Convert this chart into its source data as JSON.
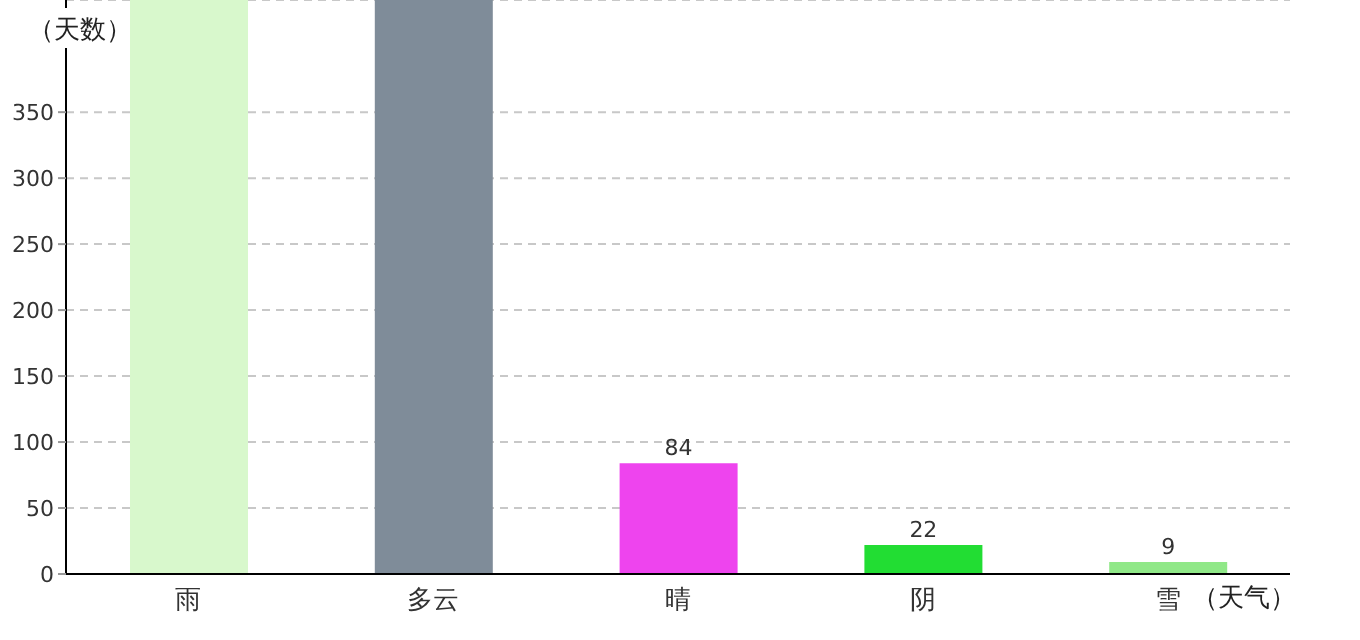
{
  "chart_data": {
    "type": "bar",
    "xlabel": "（天气）",
    "ylabel": "（天数）",
    "categories": [
      "雨",
      "多云",
      "晴",
      "阴",
      "雪"
    ],
    "values": [
      435,
      435,
      84,
      22,
      9
    ],
    "colors": [
      "#d8f8cc",
      "#7f8c99",
      "#ee44ee",
      "#22dd33",
      "#90e888"
    ],
    "value_labels": [
      null,
      null,
      "84",
      "22",
      "9"
    ],
    "ylim": [
      0,
      435
    ],
    "yticks": [
      0,
      50,
      100,
      150,
      200,
      250,
      300,
      350
    ],
    "grid": "y",
    "legend": false
  }
}
